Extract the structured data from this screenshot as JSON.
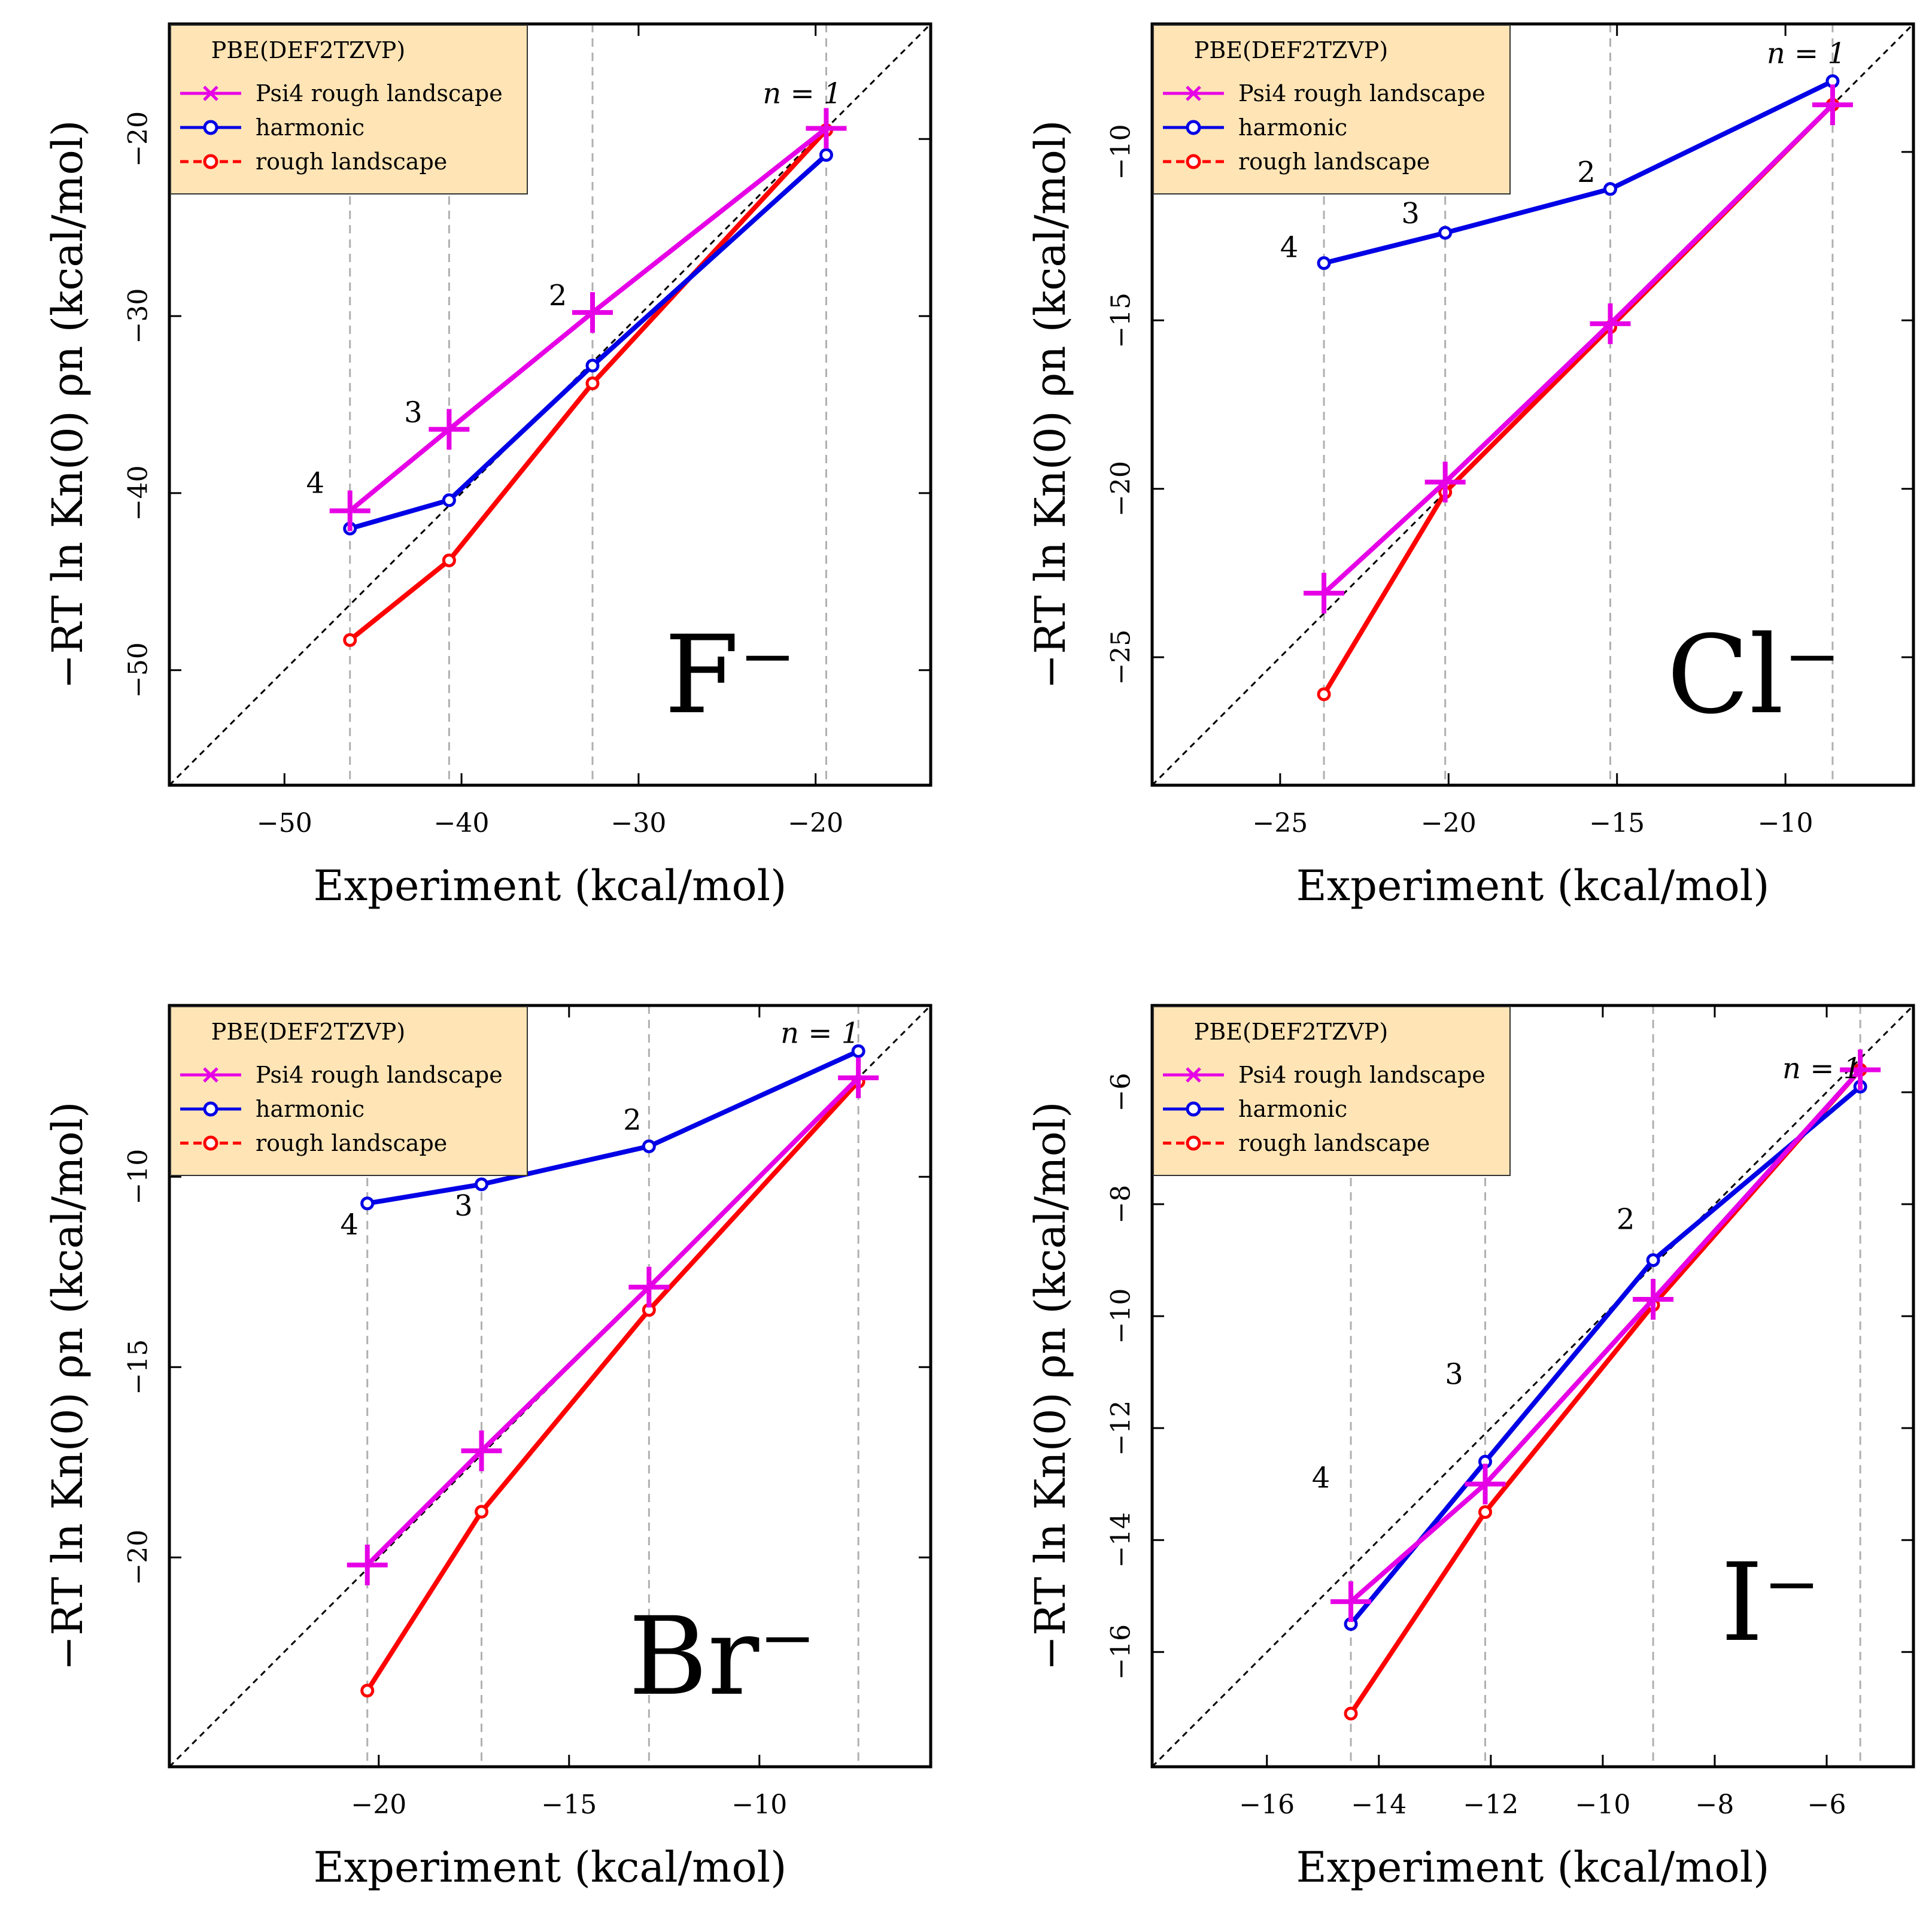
{
  "colors": {
    "psi4": "#e600e6",
    "harmonic": "#0000e6",
    "rough": "#ff0000",
    "legend_bg": "#ffe4b5",
    "grid": "#b0b0b0"
  },
  "chart_data": [
    {
      "type": "line",
      "ion_label": "F⁻",
      "xlabel": "Experiment (kcal/mol)",
      "ylabel": "−RT ln Kn(0) ρn (kcal/mol)",
      "xlim": [
        -56.5,
        -13.5
      ],
      "ylim": [
        -56.5,
        -13.5
      ],
      "xticks": [
        -50,
        -40,
        -30,
        -20
      ],
      "yticks": [
        -20,
        -30,
        -40,
        -50
      ],
      "xtick_labels": [
        "−50",
        "−40",
        "−30",
        "−20"
      ],
      "ytick_labels": [
        "−20",
        "−30",
        "−40",
        "−50"
      ],
      "x": [
        -46.3,
        -40.7,
        -32.6,
        -19.4
      ],
      "n_labels": [
        "4",
        "3",
        "2",
        "n = 1"
      ],
      "legend": {
        "title": "PBE(DEF2TZVP)",
        "entries": [
          "Psi4 rough landscape",
          "harmonic",
          "rough landscape"
        ]
      },
      "series": [
        {
          "name": "Psi4 rough landscape",
          "key": "psi4",
          "values": [
            -41.0,
            -36.4,
            -29.8,
            -19.4
          ]
        },
        {
          "name": "harmonic",
          "key": "harmonic",
          "values": [
            -42.0,
            -40.4,
            -32.8,
            -20.9
          ]
        },
        {
          "name": "rough landscape",
          "key": "rough",
          "values": [
            -48.3,
            -43.8,
            -33.8,
            -19.5
          ]
        }
      ]
    },
    {
      "type": "line",
      "ion_label": "Cl⁻",
      "xlabel": "Experiment (kcal/mol)",
      "ylabel": "−RT ln Kn(0) ρn (kcal/mol)",
      "xlim": [
        -28.8,
        -6.2
      ],
      "ylim": [
        -28.8,
        -6.2
      ],
      "xticks": [
        -25,
        -20,
        -15,
        -10
      ],
      "yticks": [
        -10,
        -15,
        -20,
        -25
      ],
      "xtick_labels": [
        "−25",
        "−20",
        "−15",
        "−10"
      ],
      "ytick_labels": [
        "−10",
        "−15",
        "−20",
        "−25"
      ],
      "x": [
        -23.7,
        -20.1,
        -15.2,
        -8.6
      ],
      "n_labels": [
        "4",
        "3",
        "2",
        "n = 1"
      ],
      "legend": {
        "title": "PBE(DEF2TZVP)",
        "entries": [
          "Psi4 rough landscape",
          "harmonic",
          "rough landscape"
        ]
      },
      "series": [
        {
          "name": "Psi4 rough landscape",
          "key": "psi4",
          "values": [
            -23.1,
            -19.8,
            -15.1,
            -8.6
          ]
        },
        {
          "name": "harmonic",
          "key": "harmonic",
          "values": [
            -13.3,
            -12.4,
            -11.1,
            -7.9
          ]
        },
        {
          "name": "rough landscape",
          "key": "rough",
          "values": [
            -26.1,
            -20.1,
            -15.2,
            -8.6
          ]
        }
      ]
    },
    {
      "type": "line",
      "ion_label": "Br⁻",
      "xlabel": "Experiment (kcal/mol)",
      "ylabel": "−RT ln Kn(0) ρn (kcal/mol)",
      "xlim": [
        -25.5,
        -5.5
      ],
      "ylim": [
        -25.5,
        -5.5
      ],
      "xticks": [
        -20,
        -15,
        -10
      ],
      "yticks": [
        -10,
        -15,
        -20
      ],
      "xtick_labels": [
        "−20",
        "−15",
        "−10"
      ],
      "ytick_labels": [
        "−10",
        "−15",
        "−20"
      ],
      "x": [
        -20.3,
        -17.3,
        -12.9,
        -7.4
      ],
      "n_labels": [
        "4",
        "3",
        "2",
        "n = 1"
      ],
      "legend": {
        "title": "PBE(DEF2TZVP)",
        "entries": [
          "Psi4 rough landscape",
          "harmonic",
          "rough landscape"
        ]
      },
      "series": [
        {
          "name": "Psi4 rough landscape",
          "key": "psi4",
          "values": [
            -20.2,
            -17.2,
            -12.9,
            -7.4
          ]
        },
        {
          "name": "harmonic",
          "key": "harmonic",
          "values": [
            -10.7,
            -10.2,
            -9.2,
            -6.7
          ]
        },
        {
          "name": "rough landscape",
          "key": "rough",
          "values": [
            -23.5,
            -18.8,
            -13.5,
            -7.5
          ]
        }
      ]
    },
    {
      "type": "line",
      "ion_label": "I⁻",
      "xlabel": "Experiment (kcal/mol)",
      "ylabel": "−RT ln Kn(0) ρn (kcal/mol)",
      "xlim": [
        -18.05,
        -4.45
      ],
      "ylim": [
        -18.05,
        -4.45
      ],
      "xticks": [
        -16,
        -14,
        -12,
        -10,
        -8,
        -6
      ],
      "yticks": [
        -6,
        -8,
        -10,
        -12,
        -14,
        -16
      ],
      "xtick_labels": [
        "−16",
        "−14",
        "−12",
        "−10",
        "−8",
        "−6"
      ],
      "ytick_labels": [
        "−6",
        "−8",
        "−10",
        "−12",
        "−14",
        "−16"
      ],
      "x": [
        -14.5,
        -12.1,
        -9.1,
        -5.4
      ],
      "n_labels": [
        "4",
        "3",
        "2",
        "n = 1"
      ],
      "legend": {
        "title": "PBE(DEF2TZVP)",
        "entries": [
          "Psi4 rough landscape",
          "harmonic",
          "rough landscape"
        ]
      },
      "series": [
        {
          "name": "Psi4 rough landscape",
          "key": "psi4",
          "values": [
            -15.1,
            -13.0,
            -9.7,
            -5.6
          ]
        },
        {
          "name": "harmonic",
          "key": "harmonic",
          "values": [
            -15.5,
            -12.6,
            -9.0,
            -5.9
          ]
        },
        {
          "name": "rough landscape",
          "key": "rough",
          "values": [
            -17.1,
            -13.5,
            -9.8,
            -5.6
          ]
        }
      ]
    }
  ]
}
